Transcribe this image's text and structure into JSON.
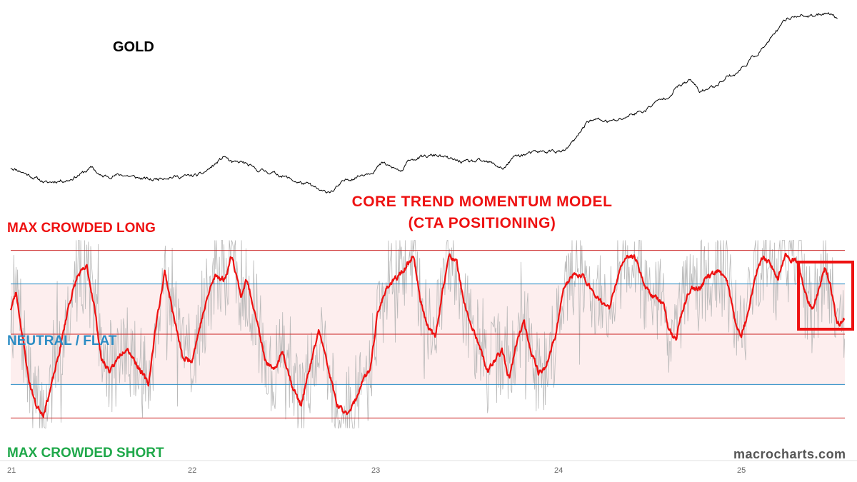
{
  "labels": {
    "gold": "GOLD",
    "model_line1": "CORE TREND MOMENTUM MODEL",
    "model_line2": "(CTA POSITIONING)",
    "max_long": "MAX CROWDED LONG",
    "neutral": "NEUTRAL / FLAT",
    "max_short": "MAX CROWDED SHORT",
    "watermark": "macrocharts.com"
  },
  "colors": {
    "gold_line": "#000000",
    "raw_signal": "#b9b9b9",
    "smoothed_signal": "#ee1111",
    "crowded_lines": "#cc2222",
    "neutral_band_lines": "#2b8cc4",
    "neutral_band_fill": "#fdeeee",
    "highlight_box": "#ee1111"
  },
  "chart_data": [
    {
      "type": "line",
      "title": "GOLD",
      "x_ticks": [
        "21",
        "22",
        "23",
        "24",
        "25"
      ],
      "x_range": [
        2021.0,
        2025.6
      ],
      "ylim": [
        1650,
        3300
      ],
      "series": [
        {
          "name": "GOLD",
          "points": [
            [
              2021.0,
              1880
            ],
            [
              2021.05,
              1850
            ],
            [
              2021.12,
              1790
            ],
            [
              2021.2,
              1730
            ],
            [
              2021.25,
              1750
            ],
            [
              2021.32,
              1760
            ],
            [
              2021.4,
              1830
            ],
            [
              2021.45,
              1880
            ],
            [
              2021.5,
              1790
            ],
            [
              2021.55,
              1800
            ],
            [
              2021.62,
              1810
            ],
            [
              2021.7,
              1780
            ],
            [
              2021.78,
              1760
            ],
            [
              2021.85,
              1790
            ],
            [
              2021.92,
              1790
            ],
            [
              2022.0,
              1800
            ],
            [
              2022.05,
              1810
            ],
            [
              2022.12,
              1900
            ],
            [
              2022.18,
              1990
            ],
            [
              2022.22,
              1920
            ],
            [
              2022.28,
              1930
            ],
            [
              2022.35,
              1860
            ],
            [
              2022.42,
              1840
            ],
            [
              2022.5,
              1800
            ],
            [
              2022.58,
              1740
            ],
            [
              2022.65,
              1710
            ],
            [
              2022.72,
              1640
            ],
            [
              2022.78,
              1660
            ],
            [
              2022.85,
              1760
            ],
            [
              2022.92,
              1800
            ],
            [
              2023.0,
              1850
            ],
            [
              2023.05,
              1920
            ],
            [
              2023.1,
              1880
            ],
            [
              2023.16,
              1840
            ],
            [
              2023.2,
              1960
            ],
            [
              2023.28,
              1980
            ],
            [
              2023.35,
              2000
            ],
            [
              2023.42,
              1960
            ],
            [
              2023.5,
              1930
            ],
            [
              2023.58,
              1940
            ],
            [
              2023.65,
              1920
            ],
            [
              2023.72,
              1870
            ],
            [
              2023.78,
              1990
            ],
            [
              2023.85,
              2010
            ],
            [
              2023.92,
              2030
            ],
            [
              2024.0,
              2040
            ],
            [
              2024.05,
              2030
            ],
            [
              2024.12,
              2160
            ],
            [
              2024.18,
              2330
            ],
            [
              2024.24,
              2340
            ],
            [
              2024.3,
              2320
            ],
            [
              2024.36,
              2340
            ],
            [
              2024.42,
              2390
            ],
            [
              2024.5,
              2430
            ],
            [
              2024.55,
              2500
            ],
            [
              2024.62,
              2560
            ],
            [
              2024.68,
              2660
            ],
            [
              2024.75,
              2720
            ],
            [
              2024.8,
              2610
            ],
            [
              2024.88,
              2660
            ],
            [
              2024.95,
              2760
            ],
            [
              2025.0,
              2780
            ],
            [
              2025.08,
              2920
            ],
            [
              2025.15,
              3030
            ],
            [
              2025.22,
              3180
            ],
            [
              2025.28,
              3310
            ],
            [
              2025.35,
              3350
            ],
            [
              2025.42,
              3330
            ],
            [
              2025.5,
              3380
            ],
            [
              2025.56,
              3320
            ]
          ]
        }
      ]
    },
    {
      "type": "line",
      "title": "CORE TREND MOMENTUM MODEL (CTA POSITIONING)",
      "x_ticks": [
        "21",
        "22",
        "23",
        "24",
        "25"
      ],
      "x_range": [
        2021.0,
        2025.6
      ],
      "ylim": [
        -1.15,
        1.15
      ],
      "reference_lines": [
        {
          "label": "MAX CROWDED LONG",
          "value": 1.0
        },
        {
          "value": 0.6
        },
        {
          "label": "NEUTRAL / FLAT",
          "value": 0.0
        },
        {
          "value": -0.6
        },
        {
          "label": "MAX CROWDED SHORT",
          "value": -1.0
        }
      ],
      "neutral_band": [
        -0.6,
        0.6
      ],
      "highlight_x_range": [
        2025.36,
        2025.6
      ],
      "series": [
        {
          "name": "raw",
          "seed": 7,
          "volatility": 0.55
        },
        {
          "name": "smoothed",
          "points": [
            [
              2021.0,
              0.3
            ],
            [
              2021.03,
              0.5
            ],
            [
              2021.06,
              0.05
            ],
            [
              2021.1,
              -0.55
            ],
            [
              2021.14,
              -0.85
            ],
            [
              2021.18,
              -0.95
            ],
            [
              2021.22,
              -0.65
            ],
            [
              2021.27,
              -0.2
            ],
            [
              2021.32,
              0.35
            ],
            [
              2021.37,
              0.7
            ],
            [
              2021.42,
              0.8
            ],
            [
              2021.46,
              0.35
            ],
            [
              2021.5,
              -0.3
            ],
            [
              2021.55,
              -0.45
            ],
            [
              2021.6,
              -0.25
            ],
            [
              2021.64,
              -0.15
            ],
            [
              2021.68,
              -0.3
            ],
            [
              2021.72,
              -0.45
            ],
            [
              2021.76,
              -0.6
            ],
            [
              2021.8,
              0.1
            ],
            [
              2021.85,
              0.75
            ],
            [
              2021.9,
              0.2
            ],
            [
              2021.95,
              -0.3
            ],
            [
              2022.0,
              -0.3
            ],
            [
              2022.05,
              0.15
            ],
            [
              2022.1,
              0.55
            ],
            [
              2022.13,
              0.7
            ],
            [
              2022.18,
              0.65
            ],
            [
              2022.22,
              0.95
            ],
            [
              2022.27,
              0.45
            ],
            [
              2022.3,
              0.65
            ],
            [
              2022.35,
              0.25
            ],
            [
              2022.4,
              -0.3
            ],
            [
              2022.45,
              -0.45
            ],
            [
              2022.5,
              -0.2
            ],
            [
              2022.55,
              -0.6
            ],
            [
              2022.6,
              -0.85
            ],
            [
              2022.65,
              -0.4
            ],
            [
              2022.7,
              0.05
            ],
            [
              2022.75,
              -0.4
            ],
            [
              2022.8,
              -0.85
            ],
            [
              2022.85,
              -0.95
            ],
            [
              2022.9,
              -0.8
            ],
            [
              2022.94,
              -0.55
            ],
            [
              2022.98,
              -0.45
            ],
            [
              2023.02,
              0.2
            ],
            [
              2023.07,
              0.55
            ],
            [
              2023.12,
              0.65
            ],
            [
              2023.18,
              0.8
            ],
            [
              2023.22,
              0.95
            ],
            [
              2023.26,
              0.4
            ],
            [
              2023.3,
              0.1
            ],
            [
              2023.34,
              -0.05
            ],
            [
              2023.38,
              0.5
            ],
            [
              2023.42,
              0.95
            ],
            [
              2023.46,
              0.85
            ],
            [
              2023.5,
              0.35
            ],
            [
              2023.55,
              0.05
            ],
            [
              2023.6,
              -0.25
            ],
            [
              2023.63,
              -0.45
            ],
            [
              2023.67,
              -0.3
            ],
            [
              2023.71,
              -0.2
            ],
            [
              2023.75,
              -0.55
            ],
            [
              2023.79,
              -0.1
            ],
            [
              2023.83,
              0.15
            ],
            [
              2023.87,
              -0.2
            ],
            [
              2023.91,
              -0.45
            ],
            [
              2023.95,
              -0.4
            ],
            [
              2024.0,
              -0.05
            ],
            [
              2024.05,
              0.55
            ],
            [
              2024.1,
              0.7
            ],
            [
              2024.15,
              0.7
            ],
            [
              2024.2,
              0.55
            ],
            [
              2024.25,
              0.4
            ],
            [
              2024.3,
              0.3
            ],
            [
              2024.35,
              0.7
            ],
            [
              2024.4,
              0.95
            ],
            [
              2024.45,
              0.9
            ],
            [
              2024.5,
              0.55
            ],
            [
              2024.55,
              0.45
            ],
            [
              2024.6,
              0.35
            ],
            [
              2024.63,
              0.05
            ],
            [
              2024.67,
              -0.05
            ],
            [
              2024.7,
              0.25
            ],
            [
              2024.75,
              0.55
            ],
            [
              2024.8,
              0.55
            ],
            [
              2024.85,
              0.7
            ],
            [
              2024.9,
              0.75
            ],
            [
              2024.95,
              0.65
            ],
            [
              2025.0,
              0.1
            ],
            [
              2025.03,
              0.0
            ],
            [
              2025.06,
              0.2
            ],
            [
              2025.1,
              0.65
            ],
            [
              2025.15,
              0.95
            ],
            [
              2025.2,
              0.8
            ],
            [
              2025.23,
              0.65
            ],
            [
              2025.27,
              0.95
            ],
            [
              2025.3,
              0.9
            ],
            [
              2025.34,
              0.85
            ],
            [
              2025.38,
              0.5
            ],
            [
              2025.42,
              0.3
            ],
            [
              2025.46,
              0.55
            ],
            [
              2025.49,
              0.8
            ],
            [
              2025.52,
              0.6
            ],
            [
              2025.55,
              0.2
            ],
            [
              2025.57,
              0.1
            ],
            [
              2025.6,
              0.2
            ]
          ]
        }
      ]
    }
  ]
}
